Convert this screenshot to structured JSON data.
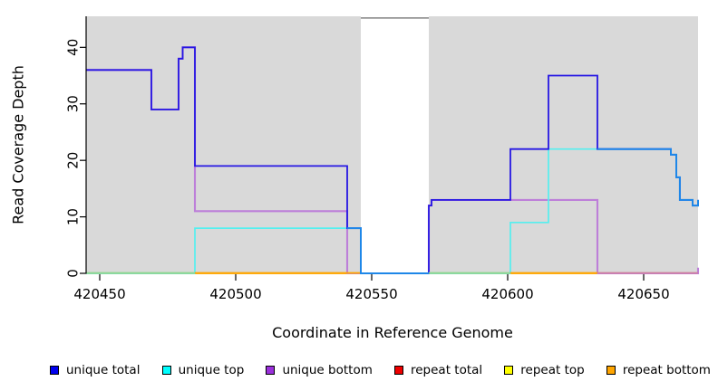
{
  "chart_data": {
    "type": "line",
    "subtype": "step-coverage",
    "title": "",
    "xlabel": "Coordinate in Reference Genome",
    "ylabel": "Read Coverage Depth",
    "xlim": [
      420445,
      420670
    ],
    "ylim": [
      0,
      45.5
    ],
    "x_ticks": [
      420450,
      420500,
      420550,
      420600,
      420650
    ],
    "y_ticks": [
      0,
      10,
      20,
      30,
      40
    ],
    "grid": false,
    "legend_position": "bottom",
    "panel_color": "#D9D9D9",
    "axis_color": "#000000",
    "gap_region": {
      "x_start": 420546,
      "x_end": 420571,
      "fill": "#FFFFFF",
      "cap_color": "#828282",
      "cap_value": 45.2
    },
    "series": [
      {
        "name": "unique total",
        "line_color": "#2617E3",
        "legend_color": "#0000EE",
        "points": [
          [
            420445,
            36
          ],
          [
            420469,
            29
          ],
          [
            420479,
            38
          ],
          [
            420480.5,
            40
          ],
          [
            420485,
            19
          ],
          [
            420541,
            8
          ],
          [
            420546,
            0
          ],
          [
            420571,
            12
          ],
          [
            420572,
            13
          ],
          [
            420601,
            22
          ],
          [
            420615,
            35
          ],
          [
            420633,
            22
          ],
          [
            420660,
            21
          ],
          [
            420662,
            17
          ],
          [
            420663.3,
            13
          ],
          [
            420668,
            12
          ],
          [
            420670,
            13
          ]
        ]
      },
      {
        "name": "unique top",
        "line_color": "#55EFEF",
        "legend_color": "#00FFFF",
        "points": [
          [
            420445,
            0
          ],
          [
            420485,
            8
          ],
          [
            420546,
            0
          ],
          [
            420601,
            9
          ],
          [
            420615,
            22
          ],
          [
            420660,
            21
          ],
          [
            420662,
            17
          ],
          [
            420663.3,
            13
          ],
          [
            420668,
            12
          ]
        ]
      },
      {
        "name": "unique bottom",
        "line_color": "#BD7FD9",
        "legend_color": "#9B30DC",
        "points": [
          [
            420445,
            36
          ],
          [
            420469,
            29
          ],
          [
            420479,
            38
          ],
          [
            420480.5,
            40
          ],
          [
            420485,
            11
          ],
          [
            420541,
            0
          ],
          [
            420571,
            12
          ],
          [
            420572,
            13
          ],
          [
            420633,
            0
          ],
          [
            420670,
            1
          ]
        ]
      },
      {
        "name": "repeat total",
        "line_color": "#EE0000",
        "legend_color": "#EE0000",
        "points": [
          [
            420445,
            0
          ]
        ]
      },
      {
        "name": "repeat top",
        "line_color": "#FFFF00",
        "legend_color": "#FFFF00",
        "points": [
          [
            420445,
            0
          ]
        ]
      },
      {
        "name": "repeat bottom",
        "line_color": "#FFA500",
        "legend_color": "#FFA500",
        "points": [
          [
            420445,
            0
          ]
        ]
      }
    ],
    "total_over_top_overlays": [
      {
        "color": "#1E87E8",
        "points": [
          [
            420541,
            8
          ],
          [
            420546,
            0
          ]
        ],
        "end": 420571
      },
      {
        "color": "#1E87E8",
        "points": [
          [
            420633,
            22
          ],
          [
            420660,
            21
          ],
          [
            420662,
            17
          ],
          [
            420663.3,
            13
          ],
          [
            420668,
            12
          ],
          [
            420670,
            13
          ]
        ],
        "end": 420670
      }
    ],
    "zero_line_segments": [
      {
        "x_start": 420445,
        "x_end": 420485,
        "color": "#8FD690"
      },
      {
        "x_start": 420485,
        "x_end": 420546,
        "color": "#FFA500"
      },
      {
        "x_start": 420571,
        "x_end": 420601,
        "color": "#8FD690"
      },
      {
        "x_start": 420601,
        "x_end": 420633,
        "color": "#FFA500"
      },
      {
        "x_start": 420633,
        "x_end": 420670,
        "color": "#CE7FA0"
      }
    ]
  },
  "legend": {
    "items": [
      {
        "label": "unique total"
      },
      {
        "label": "unique top"
      },
      {
        "label": "unique bottom"
      },
      {
        "label": "repeat total"
      },
      {
        "label": "repeat top"
      },
      {
        "label": "repeat bottom"
      }
    ]
  }
}
